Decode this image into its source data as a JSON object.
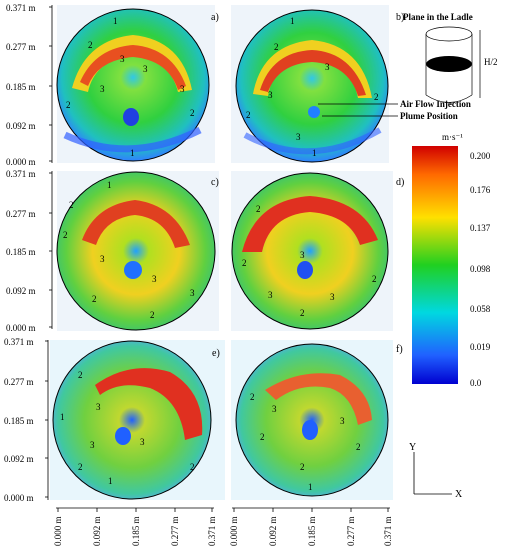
{
  "panels": [
    {
      "id": "a",
      "label": "a)"
    },
    {
      "id": "b",
      "label": "b)"
    },
    {
      "id": "c",
      "label": "c)"
    },
    {
      "id": "d",
      "label": "d)"
    },
    {
      "id": "e",
      "label": "e)"
    },
    {
      "id": "f",
      "label": "f)"
    }
  ],
  "y_ticks": [
    "0.000 m",
    "0.092 m",
    "0.185 m",
    "0.277 m",
    "0.371 m"
  ],
  "x_ticks": [
    "0.000 m",
    "0.092 m",
    "0.185 m",
    "0.277 m",
    "0.371 m"
  ],
  "contour_labels": [
    "1",
    "2",
    "3"
  ],
  "schematic": {
    "title": "Plane in the Ladle",
    "height_label": "H/2",
    "injection_label": "Air Flow Injection",
    "plume_label": "Plume Position"
  },
  "colorbar": {
    "unit": "m·s⁻¹",
    "ticks": [
      "0.200",
      "0.176",
      "0.137",
      "0.098",
      "0.058",
      "0.019",
      "0.0"
    ]
  },
  "axes_indicator": {
    "y": "Y",
    "x": "X"
  }
}
